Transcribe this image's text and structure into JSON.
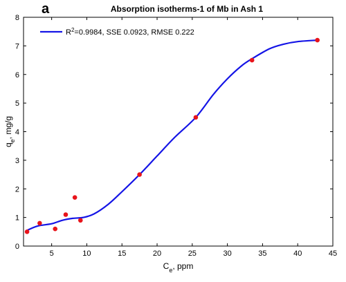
{
  "panel_label": "a",
  "chart_data": {
    "type": "scatter",
    "title": "Absorption isotherms-1 of Mb in Ash 1",
    "xlabel": {
      "base": "C",
      "sub": "e",
      "suffix": ", ppm"
    },
    "ylabel": {
      "base": "q",
      "sub": "e",
      "suffix": ", mg/g"
    },
    "xlim": [
      1,
      45
    ],
    "ylim": [
      0,
      8
    ],
    "xticks": [
      5,
      10,
      15,
      20,
      25,
      30,
      35,
      40,
      45
    ],
    "yticks": [
      0,
      1,
      2,
      3,
      4,
      5,
      6,
      7,
      8
    ],
    "grid": false,
    "legend_position": "top-left",
    "points": {
      "color": "#e8141b",
      "x": [
        1.5,
        3.3,
        5.5,
        7.0,
        8.3,
        9.1,
        17.5,
        25.5,
        33.5,
        42.8
      ],
      "y": [
        0.5,
        0.8,
        0.6,
        1.1,
        1.7,
        0.9,
        2.5,
        4.5,
        6.5,
        7.2
      ]
    },
    "fit": {
      "color": "#1414e6",
      "legend": {
        "r_base": "R",
        "r_sup": "2",
        "text": "=0.9984, SSE 0.0923, RMSE 0.222"
      },
      "x": [
        1.5,
        3.0,
        5.0,
        6.5,
        8.0,
        9.5,
        11.0,
        13.0,
        15.0,
        17.5,
        20.0,
        22.5,
        25.5,
        28.0,
        30.0,
        32.0,
        33.5,
        36.0,
        38.0,
        40.0,
        42.8
      ],
      "y": [
        0.55,
        0.7,
        0.78,
        0.9,
        0.97,
        1.0,
        1.12,
        1.45,
        1.9,
        2.5,
        3.15,
        3.8,
        4.5,
        5.3,
        5.85,
        6.3,
        6.55,
        6.9,
        7.06,
        7.15,
        7.2
      ]
    }
  }
}
